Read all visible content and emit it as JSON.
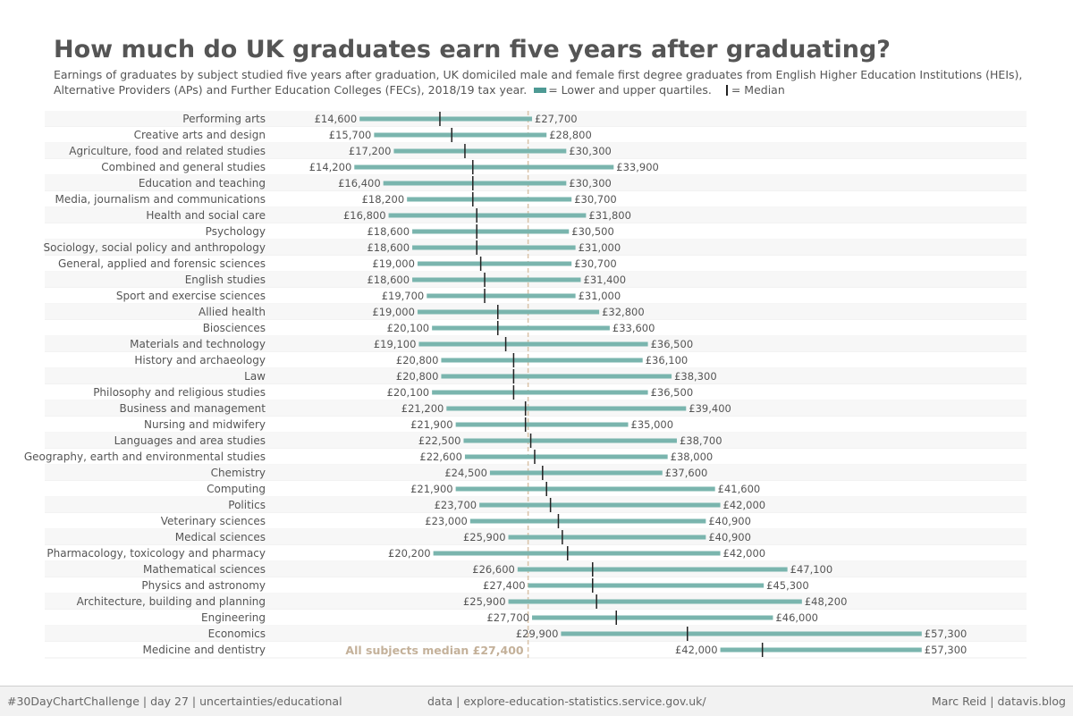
{
  "header": {
    "title": "How much do UK graduates earn five years after graduating?",
    "subtitle": "Earnings of graduates by subject studied five years after graduation, UK domiciled male and female first degree graduates from English Higher Education Institutions (HEIs), Alternative Providers (APs) and Further Education Colleges (FECs), 2018/19 tax year.",
    "legend_quartiles": "= Lower and upper quartiles.",
    "legend_median": "= Median"
  },
  "footer": {
    "left": "#30DayChartChallenge | day 27 | uncertainties/educational",
    "center": "data | explore-education-statistics.service.gov.uk/",
    "right": "Marc Reid | datavis.blog"
  },
  "colors": {
    "range_bar": "#7ab5ae",
    "median": "#222222",
    "reference_line": "#d9c3a8",
    "reference_label": "#c4b19a",
    "row_stripe": "#f7f7f7"
  },
  "chart_data": {
    "type": "range",
    "currency_prefix": "£",
    "xlim": [
      8000,
      62000
    ],
    "reference": {
      "value": 27400,
      "label": "All subjects median £27,400"
    },
    "rows": [
      {
        "subject": "Performing arts",
        "lower": 14600,
        "median": 20700,
        "upper": 27700,
        "lower_label": "£14,600",
        "upper_label": "£27,700"
      },
      {
        "subject": "Creative arts and design",
        "lower": 15700,
        "median": 21600,
        "upper": 28800,
        "lower_label": "£15,700",
        "upper_label": "£28,800"
      },
      {
        "subject": "Agriculture, food and related studies",
        "lower": 17200,
        "median": 22600,
        "upper": 30300,
        "lower_label": "£17,200",
        "upper_label": "£30,300"
      },
      {
        "subject": "Combined and general studies",
        "lower": 14200,
        "median": 23200,
        "upper": 33900,
        "lower_label": "£14,200",
        "upper_label": "£33,900"
      },
      {
        "subject": "Education and teaching",
        "lower": 16400,
        "median": 23200,
        "upper": 30300,
        "lower_label": "£16,400",
        "upper_label": "£30,300"
      },
      {
        "subject": "Media, journalism and communications",
        "lower": 18200,
        "median": 23200,
        "upper": 30700,
        "lower_label": "£18,200",
        "upper_label": "£30,700"
      },
      {
        "subject": "Health and social care",
        "lower": 16800,
        "median": 23500,
        "upper": 31800,
        "lower_label": "£16,800",
        "upper_label": "£31,800"
      },
      {
        "subject": "Psychology",
        "lower": 18600,
        "median": 23500,
        "upper": 30500,
        "lower_label": "£18,600",
        "upper_label": "£30,500"
      },
      {
        "subject": "Sociology, social policy and anthropology",
        "lower": 18600,
        "median": 23500,
        "upper": 31000,
        "lower_label": "£18,600",
        "upper_label": "£31,000"
      },
      {
        "subject": "General, applied and forensic sciences",
        "lower": 19000,
        "median": 23800,
        "upper": 30700,
        "lower_label": "£19,000",
        "upper_label": "£30,700"
      },
      {
        "subject": "English studies",
        "lower": 18600,
        "median": 24100,
        "upper": 31400,
        "lower_label": "£18,600",
        "upper_label": "£31,400"
      },
      {
        "subject": "Sport and exercise sciences",
        "lower": 19700,
        "median": 24100,
        "upper": 31000,
        "lower_label": "£19,700",
        "upper_label": "£31,000"
      },
      {
        "subject": "Allied health",
        "lower": 19000,
        "median": 25100,
        "upper": 32800,
        "lower_label": "£19,000",
        "upper_label": "£32,800"
      },
      {
        "subject": "Biosciences",
        "lower": 20100,
        "median": 25100,
        "upper": 33600,
        "lower_label": "£20,100",
        "upper_label": "£33,600"
      },
      {
        "subject": "Materials and technology",
        "lower": 19100,
        "median": 25700,
        "upper": 36500,
        "lower_label": "£19,100",
        "upper_label": "£36,500"
      },
      {
        "subject": "History and archaeology",
        "lower": 20800,
        "median": 26300,
        "upper": 36100,
        "lower_label": "£20,800",
        "upper_label": "£36,100"
      },
      {
        "subject": "Law",
        "lower": 20800,
        "median": 26300,
        "upper": 38300,
        "lower_label": "£20,800",
        "upper_label": "£38,300"
      },
      {
        "subject": "Philosophy and religious studies",
        "lower": 20100,
        "median": 26300,
        "upper": 36500,
        "lower_label": "£20,100",
        "upper_label": "£36,500"
      },
      {
        "subject": "Business and management",
        "lower": 21200,
        "median": 27200,
        "upper": 39400,
        "lower_label": "£21,200",
        "upper_label": "£39,400"
      },
      {
        "subject": "Nursing and midwifery",
        "lower": 21900,
        "median": 27200,
        "upper": 35000,
        "lower_label": "£21,900",
        "upper_label": "£35,000"
      },
      {
        "subject": "Languages and area studies",
        "lower": 22500,
        "median": 27600,
        "upper": 38700,
        "lower_label": "£22,500",
        "upper_label": "£38,700"
      },
      {
        "subject": "Geography, earth and environmental studies",
        "lower": 22600,
        "median": 27900,
        "upper": 38000,
        "lower_label": "£22,600",
        "upper_label": "£38,000"
      },
      {
        "subject": "Chemistry",
        "lower": 24500,
        "median": 28500,
        "upper": 37600,
        "lower_label": "£24,500",
        "upper_label": "£37,600"
      },
      {
        "subject": "Computing",
        "lower": 21900,
        "median": 28800,
        "upper": 41600,
        "lower_label": "£21,900",
        "upper_label": "£41,600"
      },
      {
        "subject": "Politics",
        "lower": 23700,
        "median": 29100,
        "upper": 42000,
        "lower_label": "£23,700",
        "upper_label": "£42,000"
      },
      {
        "subject": "Veterinary sciences",
        "lower": 23000,
        "median": 29700,
        "upper": 40900,
        "lower_label": "£23,000",
        "upper_label": "£40,900"
      },
      {
        "subject": "Medical sciences",
        "lower": 25900,
        "median": 30000,
        "upper": 40900,
        "lower_label": "£25,900",
        "upper_label": "£40,900"
      },
      {
        "subject": "Pharmacology, toxicology and pharmacy",
        "lower": 20200,
        "median": 30400,
        "upper": 42000,
        "lower_label": "£20,200",
        "upper_label": "£42,000"
      },
      {
        "subject": "Mathematical sciences",
        "lower": 26600,
        "median": 32300,
        "upper": 47100,
        "lower_label": "£26,600",
        "upper_label": "£47,100"
      },
      {
        "subject": "Physics and astronomy",
        "lower": 27400,
        "median": 32300,
        "upper": 45300,
        "lower_label": "£27,400",
        "upper_label": "£45,300"
      },
      {
        "subject": "Architecture, building and planning",
        "lower": 25900,
        "median": 32600,
        "upper": 48200,
        "lower_label": "£25,900",
        "upper_label": "£48,200"
      },
      {
        "subject": "Engineering",
        "lower": 27700,
        "median": 34100,
        "upper": 46000,
        "lower_label": "£27,700",
        "upper_label": "£46,000"
      },
      {
        "subject": "Economics",
        "lower": 29900,
        "median": 39500,
        "upper": 57300,
        "lower_label": "£29,900",
        "upper_label": "£57,300"
      },
      {
        "subject": "Medicine and dentistry",
        "lower": 42000,
        "median": 45200,
        "upper": 57300,
        "lower_label": "£42,000",
        "upper_label": "£57,300"
      }
    ]
  }
}
